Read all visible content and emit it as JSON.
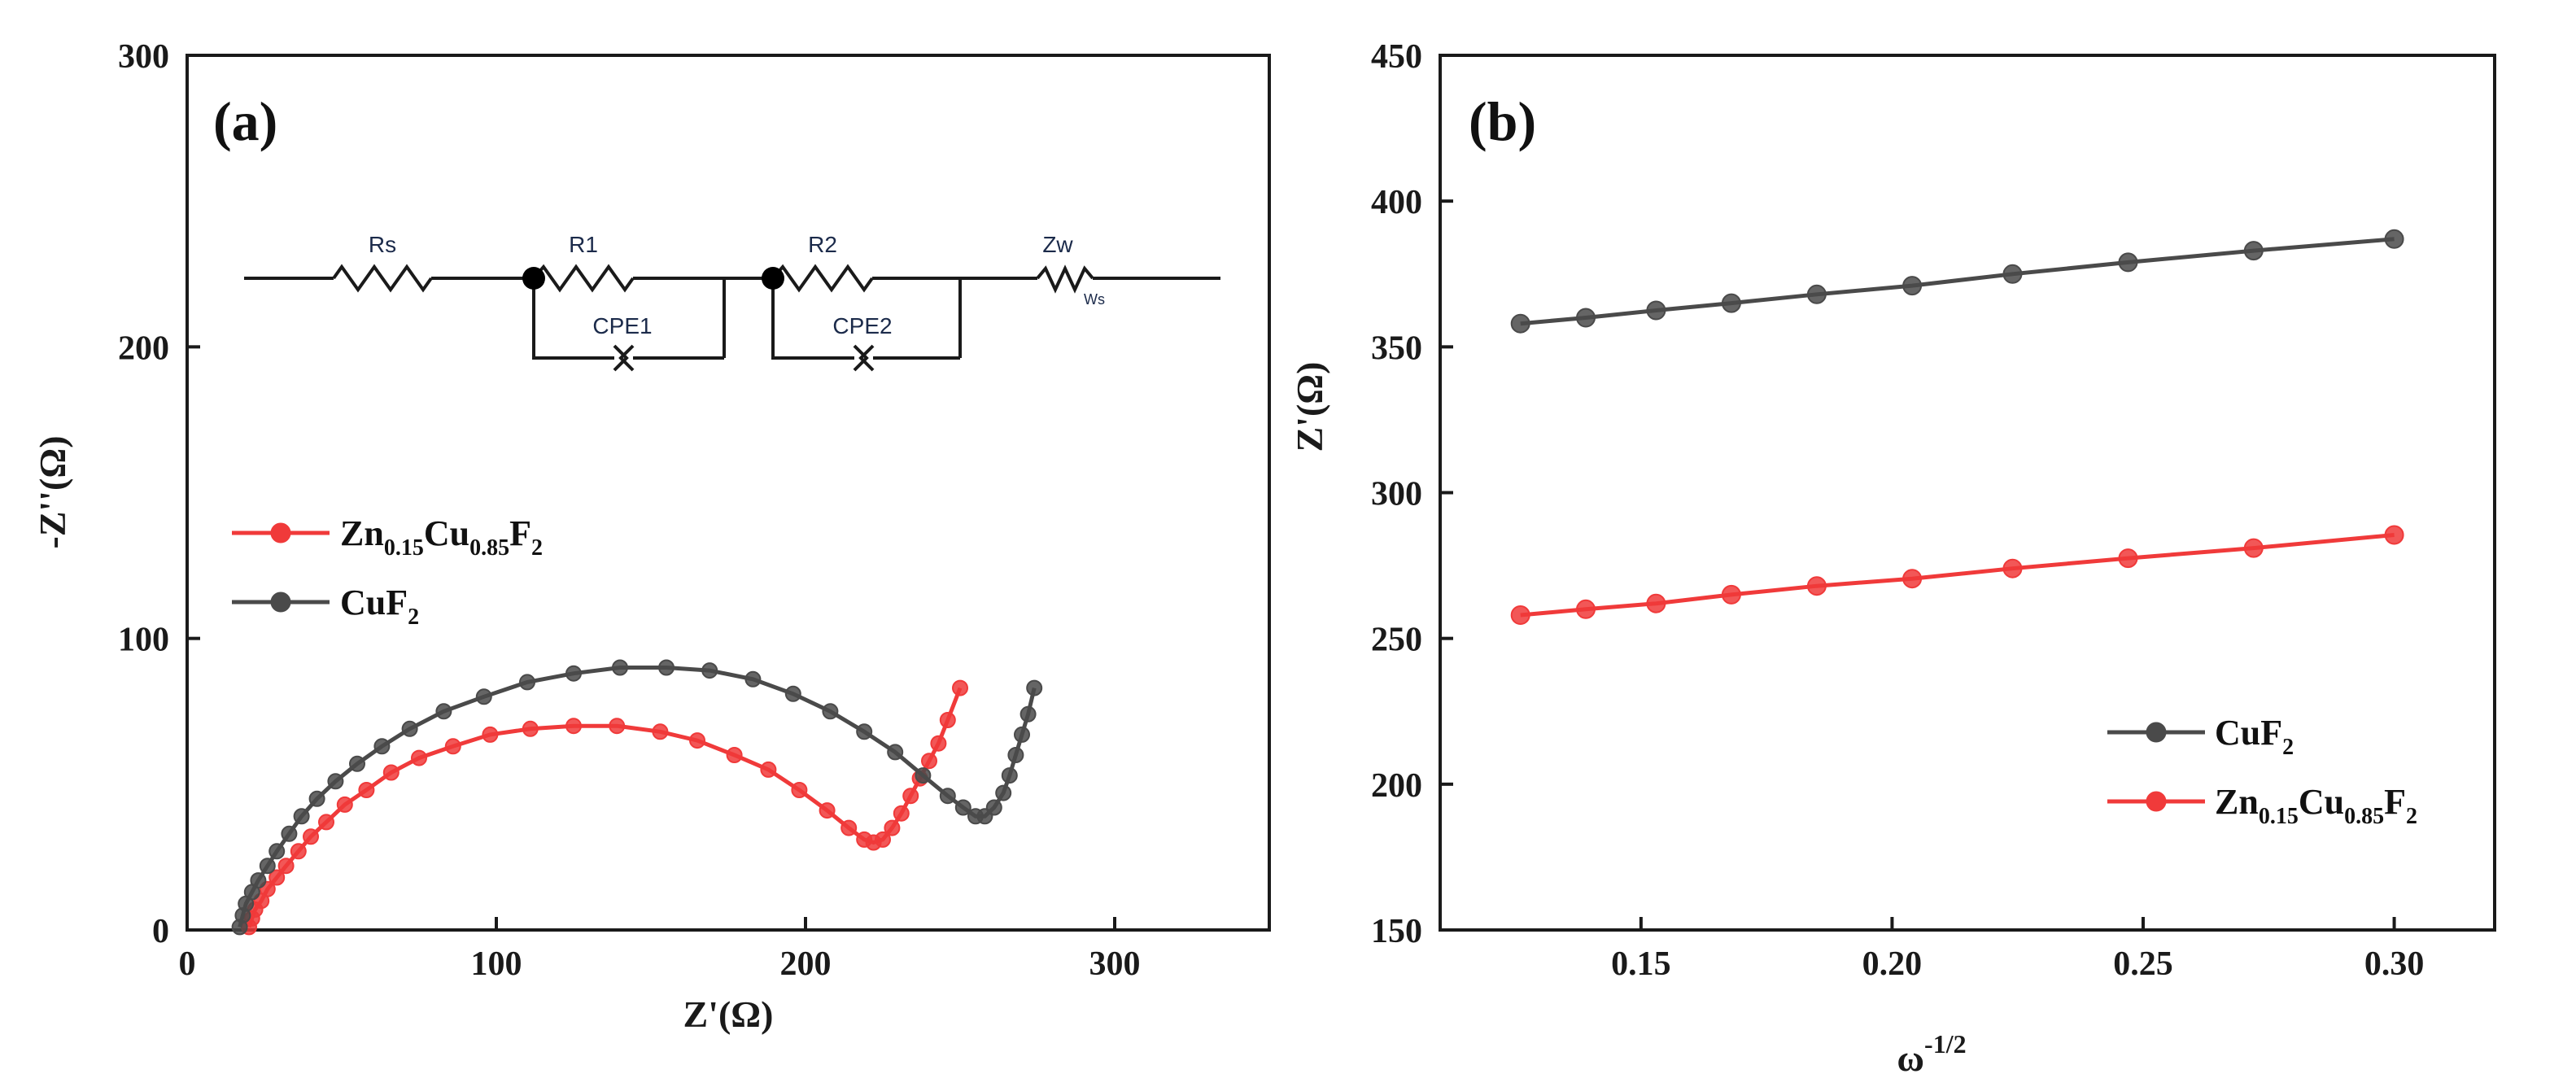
{
  "chart_data": [
    {
      "panel_label": "(a)",
      "type": "line",
      "xlabel": "Z'(Ω)",
      "ylabel": "-Z''(Ω)",
      "xlim": [
        0,
        350
      ],
      "ylim": [
        0,
        300
      ],
      "xticks": [
        0,
        100,
        200,
        300
      ],
      "yticks": [
        0,
        100,
        200,
        300
      ],
      "xtick_labels": [
        "0",
        "100",
        "200",
        "300"
      ],
      "ytick_labels": [
        "0",
        "100",
        "200",
        "300"
      ],
      "legend": {
        "placement": "middle-left",
        "entries": [
          {
            "main": "Zn",
            "sub1": "0.15",
            "mid": "Cu",
            "sub2": "0.85",
            "tail": "F",
            "sub3": "2"
          },
          {
            "main": "CuF",
            "sub1": "2"
          }
        ]
      },
      "series": [
        {
          "name": "Zn0.15Cu0.85F2",
          "color": "#f03a3a",
          "x": [
            20,
            21,
            22,
            24,
            26,
            29,
            32,
            36,
            40,
            45,
            51,
            58,
            66,
            75,
            86,
            98,
            111,
            125,
            139,
            153,
            165,
            177,
            188,
            198,
            207,
            214,
            219,
            222,
            225,
            228,
            231,
            234,
            237,
            240,
            243,
            246,
            250
          ],
          "y": [
            1,
            4,
            7,
            10,
            14,
            18,
            22,
            27,
            32,
            37,
            43,
            48,
            54,
            59,
            63,
            67,
            69,
            70,
            70,
            68,
            65,
            60,
            55,
            48,
            41,
            35,
            31,
            30,
            31,
            35,
            40,
            46,
            52,
            58,
            64,
            72,
            83
          ]
        },
        {
          "name": "CuF2",
          "color": "#4a4a4a",
          "x": [
            17,
            18,
            19,
            21,
            23,
            26,
            29,
            33,
            37,
            42,
            48,
            55,
            63,
            72,
            83,
            96,
            110,
            125,
            140,
            155,
            169,
            183,
            196,
            208,
            219,
            229,
            238,
            246,
            251,
            255,
            258,
            261,
            264,
            266,
            268,
            270,
            272,
            274
          ],
          "y": [
            1,
            5,
            9,
            13,
            17,
            22,
            27,
            33,
            39,
            45,
            51,
            57,
            63,
            69,
            75,
            80,
            85,
            88,
            90,
            90,
            89,
            86,
            81,
            75,
            68,
            61,
            53,
            46,
            42,
            39,
            39,
            42,
            47,
            53,
            60,
            67,
            74,
            83
          ]
        }
      ],
      "annotations": {
        "circuit_labels": [
          "Rs",
          "R1",
          "CPE1",
          "R2",
          "CPE2",
          "Zw",
          "Ws"
        ]
      }
    },
    {
      "panel_label": "(b)",
      "type": "line",
      "xlabel": "ω",
      "xlabel_sup": "-1/2",
      "ylabel": "Z'(Ω)",
      "xlim": [
        0.11,
        0.32
      ],
      "ylim": [
        150,
        450
      ],
      "xticks": [
        0.15,
        0.2,
        0.25,
        0.3
      ],
      "yticks": [
        150,
        200,
        250,
        300,
        350,
        400,
        450
      ],
      "xtick_labels": [
        "0.15",
        "0.20",
        "0.25",
        "0.30"
      ],
      "ytick_labels": [
        "150",
        "200",
        "250",
        "300",
        "350",
        "400",
        "450"
      ],
      "legend": {
        "placement": "lower-right",
        "entries": [
          {
            "main": "CuF",
            "sub1": "2"
          },
          {
            "main": "Zn",
            "sub1": "0.15",
            "mid": "Cu",
            "sub2": "0.85",
            "tail": "F",
            "sub3": "2"
          }
        ]
      },
      "series": [
        {
          "name": "CuF2",
          "color": "#4a4a4a",
          "x": [
            0.126,
            0.139,
            0.153,
            0.168,
            0.185,
            0.204,
            0.224,
            0.247,
            0.272,
            0.3
          ],
          "y": [
            358,
            360,
            362.5,
            365,
            368,
            371,
            375,
            379,
            383,
            387
          ]
        },
        {
          "name": "Zn0.15Cu0.85F2",
          "color": "#f03a3a",
          "x": [
            0.126,
            0.139,
            0.153,
            0.168,
            0.185,
            0.204,
            0.224,
            0.247,
            0.272,
            0.3
          ],
          "y": [
            258,
            260,
            262,
            265,
            268,
            270.5,
            274,
            277.5,
            281,
            285.5
          ]
        }
      ]
    }
  ]
}
